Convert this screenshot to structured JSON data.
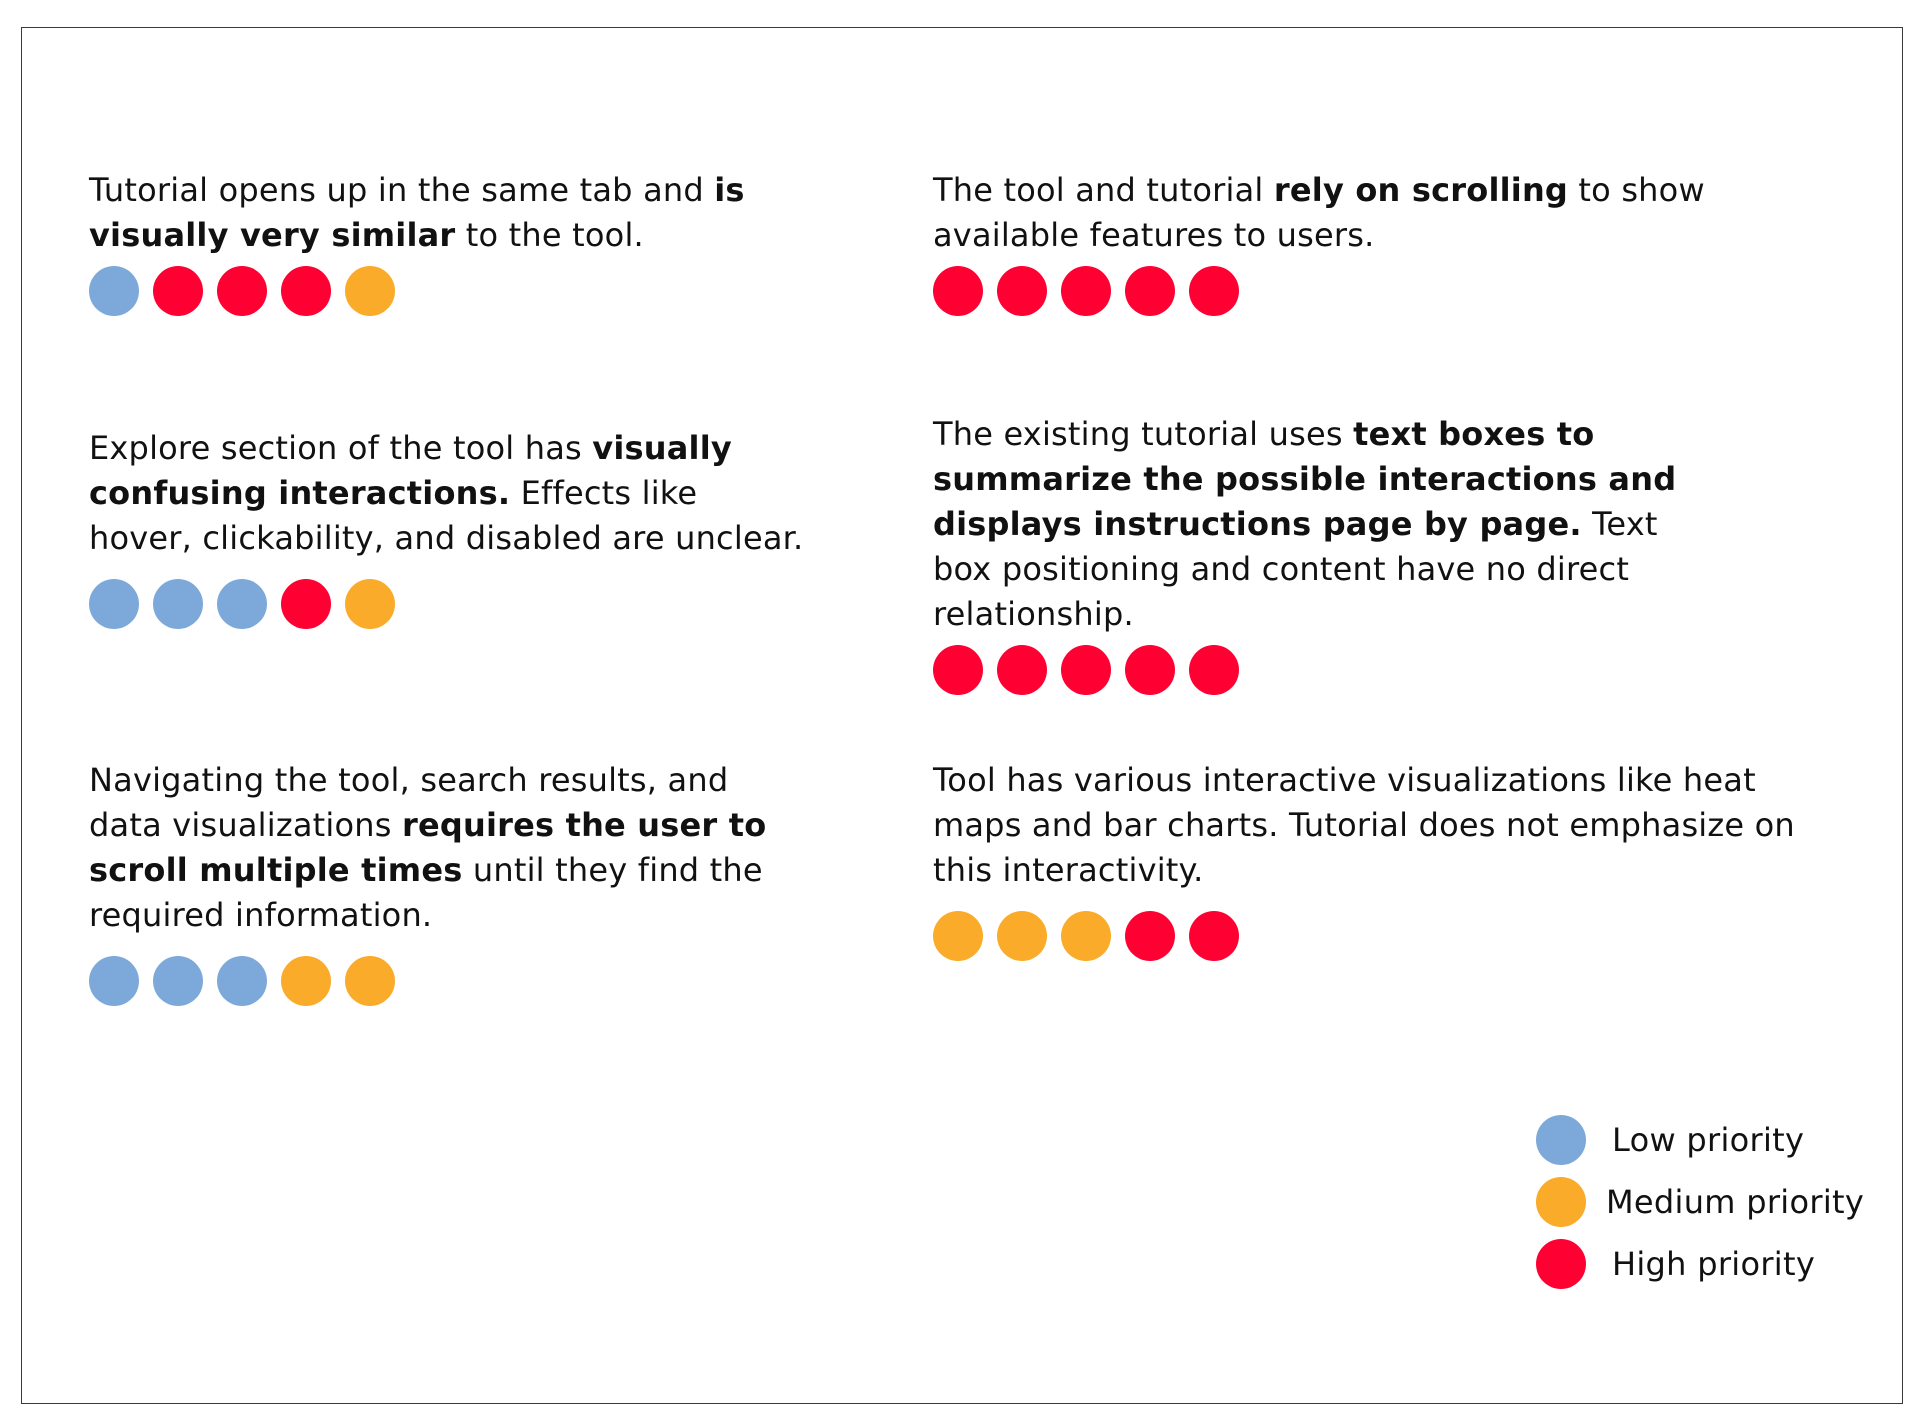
{
  "colors": {
    "low": "#7DA9DA",
    "medium": "#FAAB2A",
    "high": "#FF0033"
  },
  "findings": [
    {
      "parts": [
        {
          "text": "Tutorial opens up in the same tab and ",
          "bold": false
        },
        {
          "text": "is visually very similar",
          "bold": true
        },
        {
          "text": " to the tool.",
          "bold": false
        }
      ],
      "ratings": [
        "low",
        "high",
        "high",
        "high",
        "medium"
      ]
    },
    {
      "parts": [
        {
          "text": "The tool and tutorial ",
          "bold": false
        },
        {
          "text": "rely on scrolling",
          "bold": true
        },
        {
          "text": " to show available features to users.",
          "bold": false
        }
      ],
      "ratings": [
        "high",
        "high",
        "high",
        "high",
        "high"
      ]
    },
    {
      "parts": [
        {
          "text": "Explore section of the tool has ",
          "bold": false
        },
        {
          "text": "visually confusing interactions.",
          "bold": true
        },
        {
          "text": " Effects like hover, clickability, and disabled are unclear.",
          "bold": false
        }
      ],
      "ratings": [
        "low",
        "low",
        "low",
        "high",
        "medium"
      ]
    },
    {
      "parts": [
        {
          "text": "The existing tutorial uses ",
          "bold": false
        },
        {
          "text": "text boxes to summarize the possible interactions and displays instructions page by page.",
          "bold": true
        },
        {
          "text": "  Text box positioning and content have no direct relationship.",
          "bold": false
        }
      ],
      "ratings": [
        "high",
        "high",
        "high",
        "high",
        "high"
      ]
    },
    {
      "parts": [
        {
          "text": "Navigating the tool, search results, and data visualizations ",
          "bold": false
        },
        {
          "text": "requires the user to scroll multiple times",
          "bold": true
        },
        {
          "text": " until they find the required information.",
          "bold": false
        }
      ],
      "ratings": [
        "low",
        "low",
        "low",
        "medium",
        "medium"
      ]
    },
    {
      "parts": [
        {
          "text": "Tool has various interactive visualizations like heat maps and bar charts. Tutorial does not emphasize on this interactivity.",
          "bold": false
        }
      ],
      "ratings": [
        "medium",
        "medium",
        "medium",
        "high",
        "high"
      ]
    }
  ],
  "legend": [
    {
      "level": "low",
      "label": "Low priority"
    },
    {
      "level": "medium",
      "label": "Medium priority"
    },
    {
      "level": "high",
      "label": "High priority"
    }
  ]
}
